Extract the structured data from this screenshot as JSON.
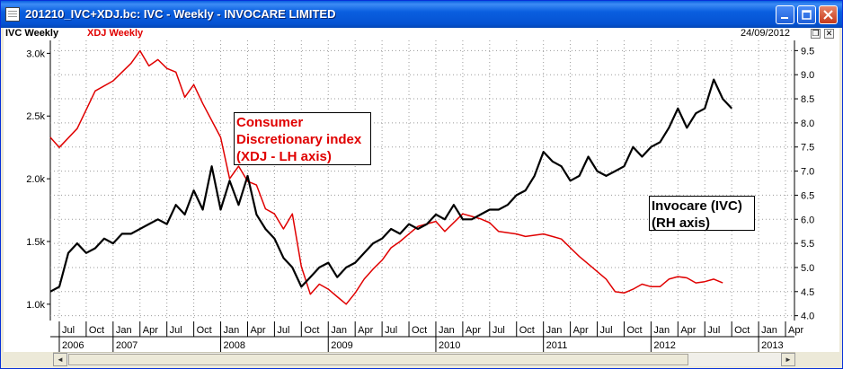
{
  "window": {
    "title": "201210_IVC+XDJ.bc: IVC - Weekly - INVOCARE LIMITED",
    "controls": [
      "minimize",
      "maximize",
      "close"
    ]
  },
  "legend": {
    "ivc_label": "IVC  Weekly",
    "xdj_label": "XDJ  Weekly",
    "date": "24/09/2012",
    "restore_glyph": "❐",
    "close_glyph": "✕"
  },
  "annotations": {
    "xdj_note": "Consumer\nDiscretionary index\n(XDJ - LH axis)",
    "ivc_note": "Invocare (IVC)\n(RH axis)"
  },
  "colors": {
    "ivc": "#000000",
    "xdj": "#e00000",
    "grid": "#9a9a9a",
    "title_bar": "#0a5fe0"
  },
  "chart_data": {
    "type": "line",
    "left_axis": {
      "label": "",
      "ticks": [
        "1.0k",
        "1.5k",
        "2.0k",
        "2.5k",
        "3.0k"
      ],
      "tick_values": [
        1000,
        1500,
        2000,
        2500,
        3000
      ],
      "ylim": [
        870,
        3060
      ]
    },
    "right_axis": {
      "label": "",
      "ticks": [
        "4.0",
        "4.5",
        "5.0",
        "5.5",
        "6.0",
        "6.5",
        "7.0",
        "7.5",
        "8.0",
        "8.5",
        "9.0",
        "9.5"
      ],
      "tick_values": [
        4.0,
        4.5,
        5.0,
        5.5,
        6.0,
        6.5,
        7.0,
        7.5,
        8.0,
        8.5,
        9.0,
        9.5
      ],
      "ylim": [
        3.9,
        9.6
      ]
    },
    "x_axis": {
      "month_labels": [
        "Jul",
        "Oct",
        "Jan",
        "Apr",
        "Jul",
        "Oct",
        "Jan",
        "Apr",
        "Jul",
        "Oct",
        "Jan",
        "Apr",
        "Jul",
        "Oct",
        "Jan",
        "Apr",
        "Jul",
        "Oct",
        "Jan",
        "Apr",
        "Jul",
        "Oct",
        "Jan",
        "Apr",
        "Jul",
        "Oct",
        "Jan",
        "Apr"
      ],
      "year_labels": [
        "2006",
        "2007",
        "2008",
        "2009",
        "2010",
        "2011",
        "2012",
        "2013"
      ],
      "range": [
        "2006-06",
        "2013-05"
      ]
    },
    "series": [
      {
        "name": "XDJ",
        "axis": "left",
        "x": [
          "2006-06",
          "2006-07",
          "2006-09",
          "2006-10",
          "2006-11",
          "2007-01",
          "2007-02",
          "2007-03",
          "2007-04",
          "2007-05",
          "2007-06",
          "2007-07",
          "2007-08",
          "2007-09",
          "2007-10",
          "2007-11",
          "2008-01",
          "2008-02",
          "2008-03",
          "2008-04",
          "2008-05",
          "2008-06",
          "2008-07",
          "2008-08",
          "2008-09",
          "2008-10",
          "2008-11",
          "2008-12",
          "2009-01",
          "2009-02",
          "2009-03",
          "2009-04",
          "2009-05",
          "2009-06",
          "2009-07",
          "2009-08",
          "2009-09",
          "2009-10",
          "2009-11",
          "2009-12",
          "2010-01",
          "2010-02",
          "2010-04",
          "2010-05",
          "2010-06",
          "2010-07",
          "2010-08",
          "2010-10",
          "2010-11",
          "2011-01",
          "2011-02",
          "2011-03",
          "2011-04",
          "2011-05",
          "2011-06",
          "2011-08",
          "2011-09",
          "2011-10",
          "2011-11",
          "2011-12",
          "2012-01",
          "2012-02",
          "2012-03",
          "2012-04",
          "2012-05",
          "2012-06",
          "2012-07",
          "2012-08",
          "2012-09"
        ],
        "values": [
          2330,
          2250,
          2400,
          2550,
          2700,
          2780,
          2850,
          2920,
          3020,
          2900,
          2950,
          2880,
          2850,
          2650,
          2750,
          2600,
          2330,
          2000,
          2100,
          1980,
          1950,
          1760,
          1720,
          1600,
          1720,
          1300,
          1080,
          1160,
          1120,
          1060,
          1000,
          1090,
          1200,
          1280,
          1350,
          1450,
          1500,
          1560,
          1620,
          1640,
          1660,
          1580,
          1720,
          1700,
          1680,
          1650,
          1580,
          1560,
          1540,
          1560,
          1540,
          1520,
          1450,
          1380,
          1320,
          1200,
          1100,
          1090,
          1120,
          1160,
          1140,
          1140,
          1200,
          1220,
          1210,
          1170,
          1180,
          1200,
          1170
        ]
      },
      {
        "name": "IVC",
        "axis": "right",
        "x": [
          "2006-06",
          "2006-07",
          "2006-08",
          "2006-09",
          "2006-10",
          "2006-11",
          "2006-12",
          "2007-01",
          "2007-02",
          "2007-03",
          "2007-05",
          "2007-06",
          "2007-07",
          "2007-08",
          "2007-09",
          "2007-10",
          "2007-11",
          "2007-12",
          "2008-01",
          "2008-02",
          "2008-03",
          "2008-04",
          "2008-05",
          "2008-06",
          "2008-07",
          "2008-08",
          "2008-09",
          "2008-10",
          "2008-11",
          "2008-12",
          "2009-01",
          "2009-02",
          "2009-03",
          "2009-04",
          "2009-05",
          "2009-06",
          "2009-07",
          "2009-08",
          "2009-09",
          "2009-10",
          "2009-11",
          "2009-12",
          "2010-01",
          "2010-02",
          "2010-03",
          "2010-04",
          "2010-05",
          "2010-06",
          "2010-07",
          "2010-08",
          "2010-09",
          "2010-10",
          "2010-11",
          "2010-12",
          "2011-01",
          "2011-02",
          "2011-03",
          "2011-04",
          "2011-05",
          "2011-06",
          "2011-07",
          "2011-08",
          "2011-09",
          "2011-10",
          "2011-11",
          "2011-12",
          "2012-01",
          "2012-02",
          "2012-03",
          "2012-04",
          "2012-05",
          "2012-06",
          "2012-07",
          "2012-08",
          "2012-09",
          "2012-10"
        ],
        "values": [
          4.5,
          4.6,
          5.3,
          5.5,
          5.3,
          5.4,
          5.6,
          5.5,
          5.7,
          5.7,
          5.9,
          6.0,
          5.9,
          6.3,
          6.1,
          6.6,
          6.2,
          7.1,
          6.2,
          6.8,
          6.3,
          6.9,
          6.1,
          5.8,
          5.6,
          5.2,
          5.0,
          4.6,
          4.8,
          5.0,
          5.1,
          4.8,
          5.0,
          5.1,
          5.3,
          5.5,
          5.6,
          5.8,
          5.7,
          5.9,
          5.8,
          5.9,
          6.1,
          6.0,
          6.3,
          6.0,
          6.0,
          6.1,
          6.2,
          6.2,
          6.3,
          6.5,
          6.6,
          6.9,
          7.4,
          7.2,
          7.1,
          6.8,
          6.9,
          7.3,
          7.0,
          6.9,
          7.0,
          7.1,
          7.5,
          7.3,
          7.5,
          7.6,
          7.9,
          8.3,
          7.9,
          8.2,
          8.3,
          8.9,
          8.5,
          8.3
        ]
      }
    ],
    "grid": true,
    "legend": "top-left"
  }
}
